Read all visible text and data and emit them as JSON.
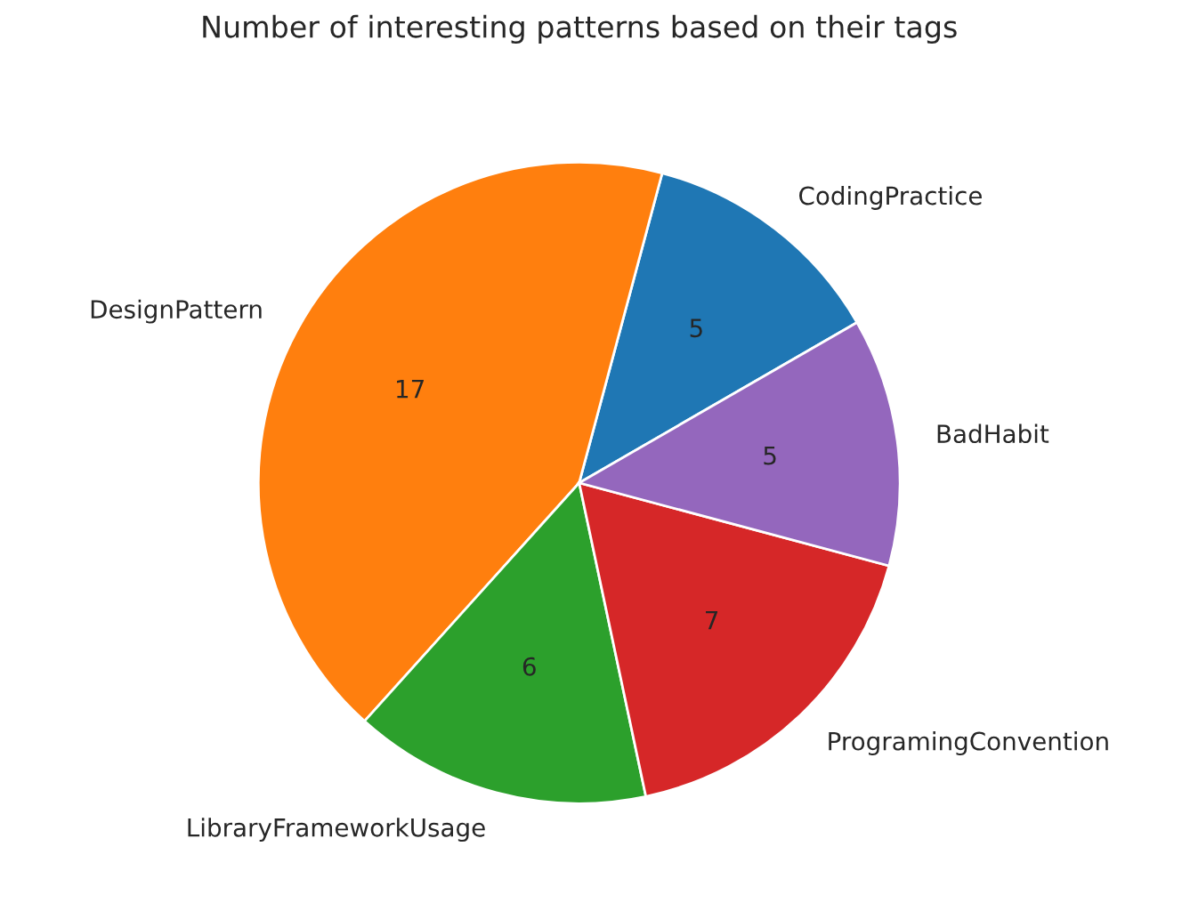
{
  "chart_data": {
    "type": "pie",
    "title": "Number of interesting patterns based on their tags",
    "categories": [
      "CodingPractice",
      "DesignPattern",
      "LibraryFrameworkUsage",
      "ProgramingConvention",
      "BadHabit"
    ],
    "values": [
      5,
      17,
      6,
      7,
      5
    ],
    "colors": [
      "#1f77b4",
      "#ff7f0e",
      "#2ca02c",
      "#d62728",
      "#9467bd"
    ],
    "data_labels": true
  }
}
